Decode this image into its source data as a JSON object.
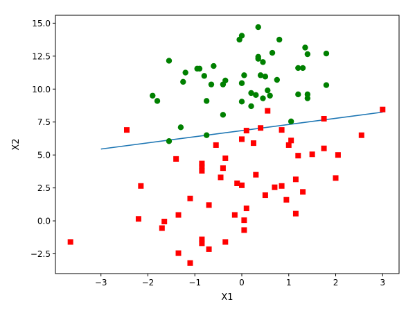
{
  "chart_data": {
    "type": "scatter",
    "xlabel": "X1",
    "ylabel": "X2",
    "xlim": [
      -3.97,
      3.35
    ],
    "ylim": [
      -4.0,
      15.6
    ],
    "xticks": [
      -3,
      -2,
      -1,
      0,
      1,
      2,
      3
    ],
    "xtick_labels": [
      "−3",
      "−2",
      "−1",
      "0",
      "1",
      "2",
      "3"
    ],
    "yticks": [
      -2.5,
      0.0,
      2.5,
      5.0,
      7.5,
      10.0,
      12.5,
      15.0
    ],
    "ytick_labels": [
      "−2.5",
      "0.0",
      "2.5",
      "5.0",
      "7.5",
      "10.0",
      "12.5",
      "15.0"
    ],
    "grid": false,
    "series": [
      {
        "marker": "circle",
        "color": "#008000",
        "points": [
          [
            -1.55,
            12.15
          ],
          [
            -1.9,
            9.5
          ],
          [
            -1.8,
            9.1
          ],
          [
            -1.3,
            7.1
          ],
          [
            -1.55,
            6.05
          ],
          [
            -1.2,
            11.25
          ],
          [
            -1.25,
            10.55
          ],
          [
            -0.95,
            11.55
          ],
          [
            -0.9,
            11.55
          ],
          [
            -0.8,
            11.0
          ],
          [
            -0.75,
            9.1
          ],
          [
            -0.65,
            10.35
          ],
          [
            -0.6,
            11.75
          ],
          [
            -0.4,
            10.35
          ],
          [
            -0.35,
            10.65
          ],
          [
            -0.4,
            8.05
          ],
          [
            -0.75,
            6.5
          ],
          [
            -0.05,
            13.75
          ],
          [
            0.0,
            14.05
          ],
          [
            0.0,
            10.45
          ],
          [
            0.05,
            11.05
          ],
          [
            0.0,
            9.05
          ],
          [
            0.2,
            9.7
          ],
          [
            0.2,
            8.7
          ],
          [
            0.3,
            9.55
          ],
          [
            0.35,
            14.7
          ],
          [
            0.35,
            12.3
          ],
          [
            0.35,
            12.45
          ],
          [
            0.4,
            11.05
          ],
          [
            0.45,
            12.05
          ],
          [
            0.45,
            9.3
          ],
          [
            0.5,
            10.95
          ],
          [
            0.55,
            9.9
          ],
          [
            0.6,
            9.5
          ],
          [
            0.65,
            12.75
          ],
          [
            0.75,
            10.7
          ],
          [
            0.8,
            13.75
          ],
          [
            1.05,
            7.55
          ],
          [
            1.2,
            11.6
          ],
          [
            1.2,
            9.6
          ],
          [
            1.3,
            11.6
          ],
          [
            1.35,
            13.15
          ],
          [
            1.4,
            12.65
          ],
          [
            1.4,
            9.3
          ],
          [
            1.4,
            9.6
          ],
          [
            1.8,
            12.7
          ],
          [
            1.8,
            10.3
          ]
        ]
      },
      {
        "marker": "square",
        "color": "#ff0000",
        "points": [
          [
            -3.65,
            -1.6
          ],
          [
            -2.45,
            6.9
          ],
          [
            -2.2,
            0.15
          ],
          [
            -2.15,
            2.65
          ],
          [
            -1.7,
            -0.55
          ],
          [
            -1.65,
            -0.05
          ],
          [
            -1.4,
            4.7
          ],
          [
            -1.35,
            -2.45
          ],
          [
            -1.35,
            0.45
          ],
          [
            -1.1,
            1.7
          ],
          [
            -1.1,
            -3.2
          ],
          [
            -0.85,
            -1.7
          ],
          [
            -0.85,
            -1.4
          ],
          [
            -0.85,
            3.8
          ],
          [
            -0.85,
            4.1
          ],
          [
            -0.85,
            4.35
          ],
          [
            -0.7,
            -2.15
          ],
          [
            -0.7,
            1.2
          ],
          [
            -0.55,
            5.75
          ],
          [
            -0.45,
            3.3
          ],
          [
            -0.4,
            4.0
          ],
          [
            -0.35,
            4.75
          ],
          [
            -0.35,
            -1.6
          ],
          [
            -0.15,
            0.45
          ],
          [
            -0.1,
            2.85
          ],
          [
            0.0,
            6.2
          ],
          [
            0.0,
            2.7
          ],
          [
            0.05,
            -0.7
          ],
          [
            0.05,
            0.05
          ],
          [
            0.1,
            6.85
          ],
          [
            0.1,
            0.95
          ],
          [
            0.25,
            5.9
          ],
          [
            0.3,
            3.5
          ],
          [
            0.4,
            7.05
          ],
          [
            0.5,
            1.95
          ],
          [
            0.55,
            8.35
          ],
          [
            0.7,
            2.55
          ],
          [
            0.85,
            6.9
          ],
          [
            0.85,
            2.65
          ],
          [
            0.95,
            1.6
          ],
          [
            1.05,
            6.1
          ],
          [
            1.0,
            5.75
          ],
          [
            1.15,
            3.15
          ],
          [
            1.15,
            0.55
          ],
          [
            1.2,
            4.95
          ],
          [
            1.3,
            2.2
          ],
          [
            1.5,
            5.05
          ],
          [
            1.75,
            7.75
          ],
          [
            1.75,
            5.5
          ],
          [
            2.0,
            3.25
          ],
          [
            2.05,
            5.0
          ],
          [
            2.55,
            6.5
          ],
          [
            3.0,
            8.45
          ]
        ]
      }
    ],
    "lines": [
      {
        "color": "#1f77b4",
        "x": [
          -3.0,
          3.0
        ],
        "y": [
          5.45,
          8.25
        ]
      }
    ]
  }
}
